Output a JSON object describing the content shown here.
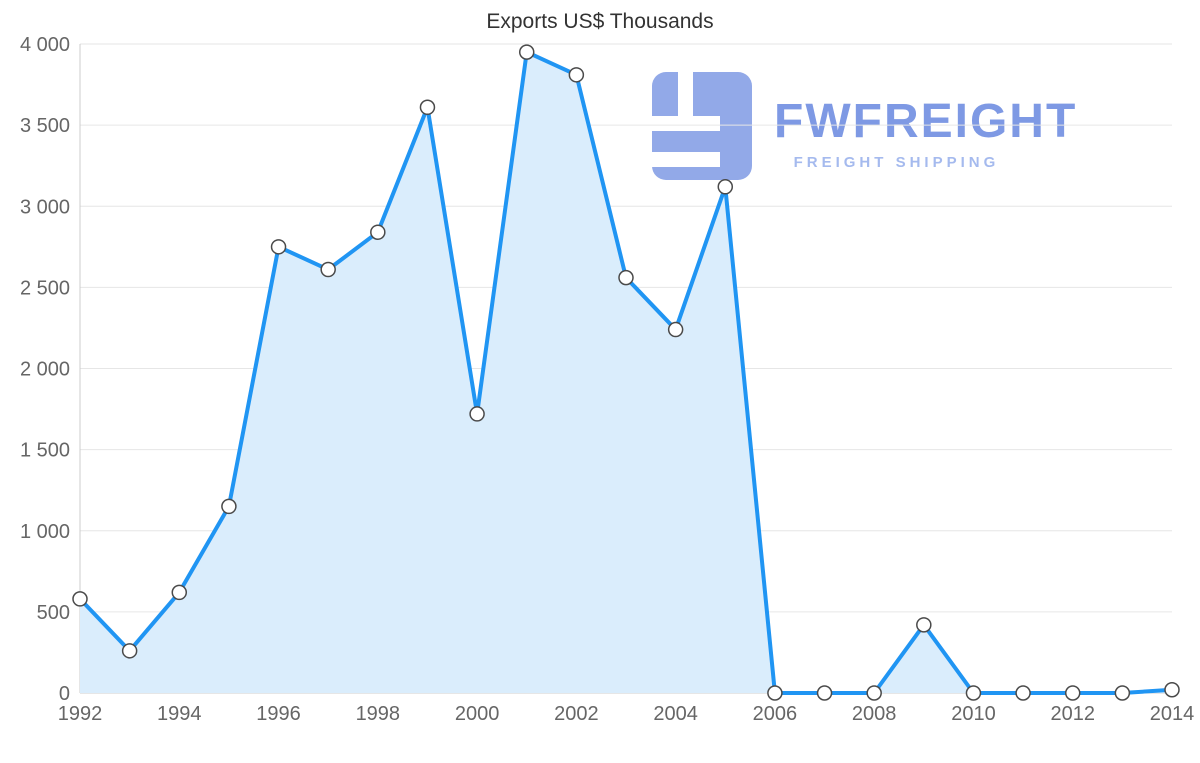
{
  "title": "Exports US$ Thousands",
  "watermark": {
    "brand": "FWFREIGHT",
    "tagline": "FREIGHT SHIPPING",
    "icon_color": "#92a9e8",
    "brand_color": "#7e99e4",
    "tagline_color": "#a5baee"
  },
  "chart_data": {
    "type": "area",
    "title": "Exports US$ Thousands",
    "xlabel": "",
    "ylabel": "",
    "x": [
      1992,
      1993,
      1994,
      1995,
      1996,
      1997,
      1998,
      1999,
      2000,
      2001,
      2002,
      2003,
      2004,
      2005,
      2006,
      2007,
      2008,
      2009,
      2010,
      2011,
      2012,
      2013,
      2014
    ],
    "series": [
      {
        "name": "Exports US$ Thousands",
        "values": [
          580,
          260,
          620,
          1150,
          2750,
          2610,
          2840,
          3610,
          1720,
          3950,
          3810,
          2560,
          2240,
          3120,
          0,
          0,
          0,
          420,
          0,
          0,
          0,
          0,
          20
        ]
      }
    ],
    "ylim": [
      0,
      4000
    ],
    "yticks": [
      0,
      500,
      1000,
      1500,
      2000,
      2500,
      3000,
      3500,
      4000
    ],
    "ytick_labels": [
      "0",
      "500",
      "1 000",
      "1 500",
      "2 000",
      "2 500",
      "3 000",
      "3 500",
      "4 000"
    ],
    "xticks": [
      1992,
      1994,
      1996,
      1998,
      2000,
      2002,
      2004,
      2006,
      2008,
      2010,
      2012,
      2014
    ],
    "grid": "horizontal",
    "legend": "none",
    "colors": {
      "line": "#2095f3",
      "area": "#daedfc",
      "marker_fill": "#ffffff",
      "marker_stroke": "#4a4a4a",
      "grid": "#e6e6e6",
      "axis": "#cccccc",
      "tick_text": "#666666",
      "title_text": "#333333"
    }
  }
}
